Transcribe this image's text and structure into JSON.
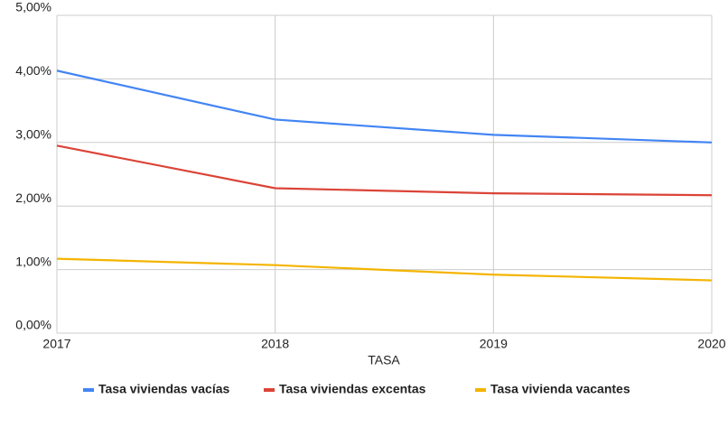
{
  "chart_data": {
    "type": "line",
    "x": [
      2017,
      2018,
      2019,
      2020
    ],
    "xlim": [
      2017,
      2020
    ],
    "xticks": [
      2017,
      2018,
      2019,
      2020
    ],
    "ylim": [
      0,
      5
    ],
    "yticks": [
      {
        "value": 0,
        "label": "0,00%"
      },
      {
        "value": 1,
        "label": "1,00%"
      },
      {
        "value": 2,
        "label": "2,00%"
      },
      {
        "value": 3,
        "label": "3,00%"
      },
      {
        "value": 4,
        "label": "4,00%"
      },
      {
        "value": 5,
        "label": "5,00%"
      }
    ],
    "xlabel": "TASA",
    "grid": true,
    "legend": "bottom",
    "series": [
      {
        "name": "Tasa viviendas vacías",
        "color": "#4285f4",
        "values": [
          4.13,
          3.36,
          3.12,
          3.0
        ]
      },
      {
        "name": "Tasa viviendas excentas",
        "color": "#db4437",
        "values": [
          2.95,
          2.28,
          2.2,
          2.17
        ]
      },
      {
        "name": "Tasa vivienda vacantes",
        "color": "#f4b400",
        "values": [
          1.17,
          1.07,
          0.92,
          0.83
        ]
      }
    ]
  }
}
